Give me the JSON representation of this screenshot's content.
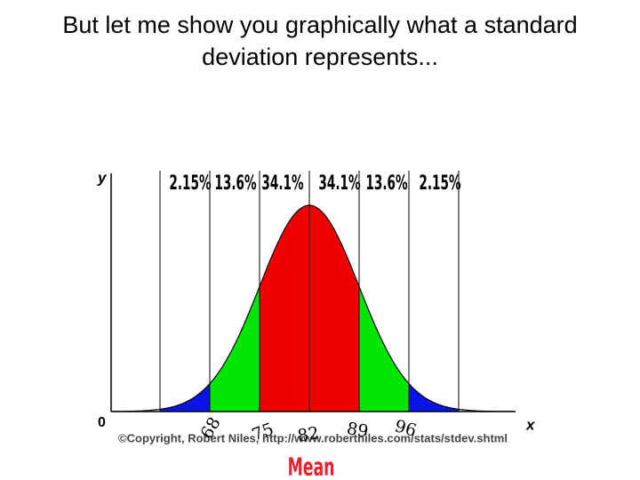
{
  "title": [
    "But let me show you graphically what a standard",
    "deviation represents..."
  ],
  "figure": {
    "y_label": "y",
    "x_label": "x",
    "origin_label": "0",
    "band_labels": [
      "2.15%",
      "13.6%",
      "34.1%",
      "34.1%",
      "13.6%",
      "2.15%"
    ],
    "handwritten": [
      "68",
      "75",
      "82",
      "89",
      "96"
    ],
    "copyright": "©Copyright, Robert Niles, http://www.robertniles.com/stats/stdev.shtml",
    "mean_label": "Mean"
  }
}
